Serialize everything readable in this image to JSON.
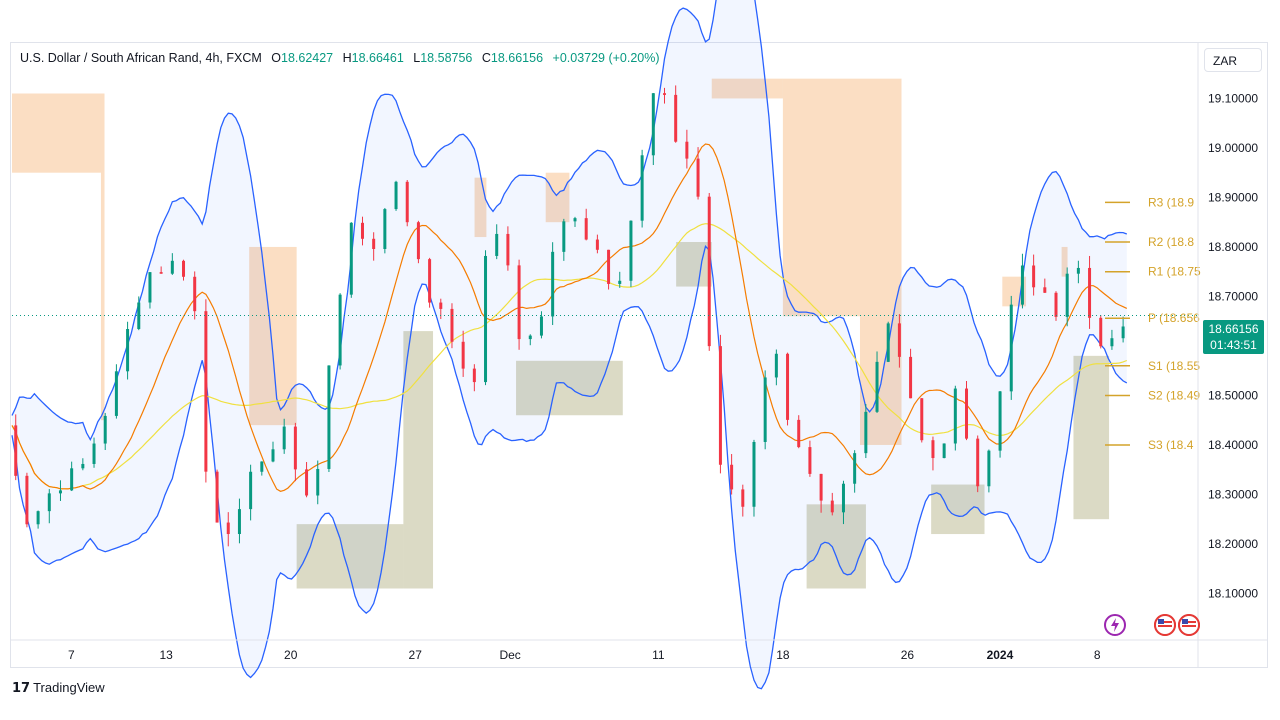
{
  "header": {
    "symbol": "U.S. Dollar / South African Rand, 4h, FXCM",
    "open_label": "O",
    "open": "18.62427",
    "high_label": "H",
    "high": "18.66461",
    "low_label": "L",
    "low": "18.58756",
    "close_label": "C",
    "close": "18.66156",
    "change": "+0.03729 (+0.20%)"
  },
  "currency_button": "ZAR",
  "last_price": {
    "price": "18.66156",
    "countdown": "01:43:51"
  },
  "footer": {
    "brand": "TradingView"
  },
  "colors": {
    "up": "#089981",
    "down": "#f23645",
    "bb": "#2962ff",
    "bb_fill": "#2962ff",
    "ma_fast": "#f57c00",
    "ma_slow": "#f0e040",
    "resistance_zone": "#f9c89b",
    "support_zone": "#b7b68b",
    "pivot": "#d4a32a"
  },
  "chart_data": {
    "type": "candlestick",
    "instrument": "USD/ZAR",
    "timeframe": "4h",
    "ylim": [
      18.01,
      19.21
    ],
    "y_ticks": [
      "18.10000",
      "18.20000",
      "18.30000",
      "18.40000",
      "18.50000",
      "18.60000",
      "18.70000",
      "18.80000",
      "18.90000",
      "19.00000",
      "19.10000"
    ],
    "x_ticks": [
      {
        "label": "7",
        "x": 0.05
      },
      {
        "label": "13",
        "x": 0.13
      },
      {
        "label": "20",
        "x": 0.235
      },
      {
        "label": "27",
        "x": 0.34
      },
      {
        "label": "Dec",
        "x": 0.42
      },
      {
        "label": "11",
        "x": 0.545
      },
      {
        "label": "18",
        "x": 0.65
      },
      {
        "label": "26",
        "x": 0.755
      },
      {
        "label": "2024",
        "x": 0.833,
        "bold": true
      },
      {
        "label": "8",
        "x": 0.915
      }
    ],
    "pivot_levels": [
      {
        "label": "R3 (18.9",
        "value": 18.89
      },
      {
        "label": "R2 (18.8",
        "value": 18.81
      },
      {
        "label": "R1 (18.75",
        "value": 18.75
      },
      {
        "label": "P (18.656",
        "value": 18.656
      },
      {
        "label": "S1 (18.55",
        "value": 18.56
      },
      {
        "label": "S2 (18.49",
        "value": 18.5
      },
      {
        "label": "S3 (18.4",
        "value": 18.4
      }
    ],
    "key_points": [
      [
        0.0,
        18.44
      ],
      [
        0.02,
        18.25
      ],
      [
        0.04,
        18.3
      ],
      [
        0.06,
        18.36
      ],
      [
        0.08,
        18.44
      ],
      [
        0.1,
        18.58
      ],
      [
        0.115,
        18.7
      ],
      [
        0.13,
        18.77
      ],
      [
        0.15,
        18.74
      ],
      [
        0.16,
        18.68
      ],
      [
        0.165,
        18.42
      ],
      [
        0.175,
        18.27
      ],
      [
        0.19,
        18.19
      ],
      [
        0.205,
        18.34
      ],
      [
        0.22,
        18.39
      ],
      [
        0.235,
        18.42
      ],
      [
        0.25,
        18.3
      ],
      [
        0.265,
        18.37
      ],
      [
        0.275,
        18.58
      ],
      [
        0.29,
        18.86
      ],
      [
        0.31,
        18.79
      ],
      [
        0.32,
        18.85
      ],
      [
        0.33,
        18.95
      ],
      [
        0.345,
        18.78
      ],
      [
        0.36,
        18.7
      ],
      [
        0.375,
        18.62
      ],
      [
        0.385,
        18.57
      ],
      [
        0.395,
        18.48
      ],
      [
        0.4,
        18.75
      ],
      [
        0.41,
        18.84
      ],
      [
        0.425,
        18.78
      ],
      [
        0.435,
        18.62
      ],
      [
        0.45,
        18.6
      ],
      [
        0.46,
        18.78
      ],
      [
        0.475,
        18.9
      ],
      [
        0.49,
        18.82
      ],
      [
        0.505,
        18.75
      ],
      [
        0.52,
        18.73
      ],
      [
        0.535,
        18.96
      ],
      [
        0.55,
        19.13
      ],
      [
        0.565,
        19.02
      ],
      [
        0.575,
        18.97
      ],
      [
        0.58,
        19.06
      ],
      [
        0.59,
        18.7
      ],
      [
        0.605,
        18.35
      ],
      [
        0.62,
        18.23
      ],
      [
        0.635,
        18.45
      ],
      [
        0.65,
        18.6
      ],
      [
        0.665,
        18.4
      ],
      [
        0.68,
        18.32
      ],
      [
        0.695,
        18.27
      ],
      [
        0.705,
        18.32
      ],
      [
        0.715,
        18.38
      ],
      [
        0.73,
        18.48
      ],
      [
        0.745,
        18.66
      ],
      [
        0.76,
        18.56
      ],
      [
        0.775,
        18.4
      ],
      [
        0.79,
        18.35
      ],
      [
        0.8,
        18.5
      ],
      [
        0.81,
        18.45
      ],
      [
        0.82,
        18.3
      ],
      [
        0.83,
        18.4
      ],
      [
        0.845,
        18.6
      ],
      [
        0.855,
        18.78
      ],
      [
        0.87,
        18.68
      ],
      [
        0.88,
        18.73
      ],
      [
        0.89,
        18.65
      ],
      [
        0.9,
        18.79
      ],
      [
        0.91,
        18.72
      ],
      [
        0.925,
        18.58
      ],
      [
        0.935,
        18.6
      ],
      [
        0.94,
        18.66
      ]
    ]
  }
}
